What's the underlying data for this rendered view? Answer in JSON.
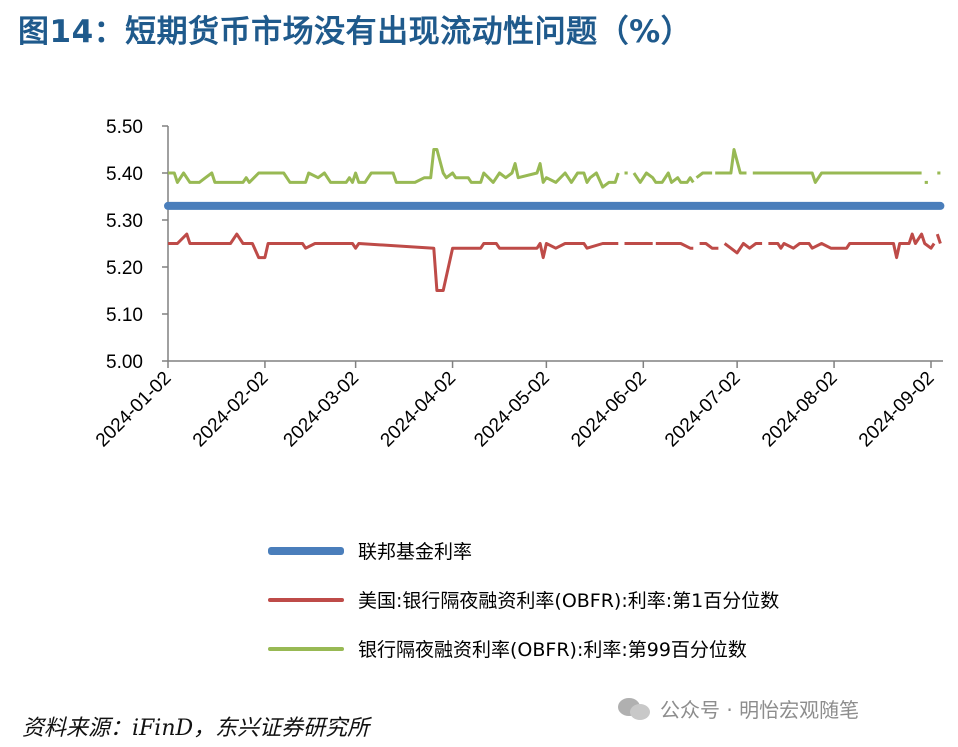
{
  "title": "图14：短期货币市场没有出现流动性问题（%）",
  "source": "资料来源：iFinD，东兴证券研究所",
  "watermark": "公众号 · 明怡宏观随笔",
  "chart_data": {
    "type": "line",
    "title": "图14：短期货币市场没有出现流动性问题（%）",
    "ylim": [
      5.0,
      5.5
    ],
    "y_ticks": [
      "5.00",
      "5.10",
      "5.20",
      "5.30",
      "5.40",
      "5.50"
    ],
    "x_ticks": [
      "2024-01-02",
      "2024-02-02",
      "2024-03-02",
      "2024-04-02",
      "2024-05-02",
      "2024-06-02",
      "2024-07-02",
      "2024-08-02",
      "2024-09-02"
    ],
    "x_start": "2024-01-02",
    "x_end": "2024-09-05",
    "grid": false,
    "legend_position": "bottom",
    "series": [
      {
        "name": "联邦基金利率",
        "color": "#4a7ebb",
        "points": [
          [
            "2024-01-02",
            5.33
          ],
          [
            "2024-09-05",
            5.33
          ]
        ]
      },
      {
        "name": "美国:银行隔夜融资利率(OBFR):利率:第1百分位数",
        "color": "#be4b48",
        "points": [
          [
            "2024-01-02",
            5.25
          ],
          [
            "2024-01-05",
            5.25
          ],
          [
            "2024-01-08",
            5.27
          ],
          [
            "2024-01-09",
            5.25
          ],
          [
            "2024-01-22",
            5.25
          ],
          [
            "2024-01-24",
            5.27
          ],
          [
            "2024-01-26",
            5.25
          ],
          [
            "2024-01-29",
            5.25
          ],
          [
            "2024-01-31",
            5.22
          ],
          [
            "2024-02-02",
            5.22
          ],
          [
            "2024-02-03",
            5.25
          ],
          [
            "2024-02-14",
            5.25
          ],
          [
            "2024-02-15",
            5.24
          ],
          [
            "2024-02-18",
            5.25
          ],
          [
            "2024-03-01",
            5.25
          ],
          [
            "2024-03-02",
            5.24
          ],
          [
            "2024-03-03",
            5.25
          ],
          [
            "2024-03-27",
            5.24
          ],
          [
            "2024-03-28",
            5.15
          ],
          [
            "2024-03-30",
            5.15
          ],
          [
            "2024-04-02",
            5.24
          ],
          [
            "2024-04-11",
            5.24
          ],
          [
            "2024-04-12",
            5.25
          ],
          [
            "2024-04-16",
            5.25
          ],
          [
            "2024-04-17",
            5.24
          ],
          [
            "2024-04-29",
            5.24
          ],
          [
            "2024-04-30",
            5.25
          ],
          [
            "2024-05-01",
            5.22
          ],
          [
            "2024-05-02",
            5.25
          ],
          [
            "2024-05-05",
            5.24
          ],
          [
            "2024-05-08",
            5.25
          ],
          [
            "2024-05-14",
            5.25
          ],
          [
            "2024-05-15",
            5.24
          ],
          [
            "2024-05-20",
            5.25
          ],
          [
            "2024-05-25",
            5.25
          ]
        ],
        "segments_after": [
          [
            [
              "2024-05-27",
              5.25
            ],
            [
              "2024-06-05",
              5.25
            ]
          ],
          [
            [
              "2024-06-06",
              5.25
            ],
            [
              "2024-06-14",
              5.25
            ],
            [
              "2024-06-17",
              5.24
            ],
            [
              "2024-06-18",
              5.24
            ]
          ],
          [
            [
              "2024-06-20",
              5.25
            ],
            [
              "2024-06-22",
              5.25
            ],
            [
              "2024-06-24",
              5.24
            ],
            [
              "2024-06-26",
              5.24
            ]
          ],
          [
            [
              "2024-06-28",
              5.25
            ],
            [
              "2024-06-30",
              5.24
            ],
            [
              "2024-07-02",
              5.23
            ],
            [
              "2024-07-04",
              5.25
            ],
            [
              "2024-07-06",
              5.24
            ],
            [
              "2024-07-08",
              5.25
            ],
            [
              "2024-07-10",
              5.25
            ]
          ],
          [
            [
              "2024-07-12",
              5.25
            ],
            [
              "2024-07-15",
              5.25
            ],
            [
              "2024-07-16",
              5.24
            ],
            [
              "2024-07-17",
              5.25
            ],
            [
              "2024-07-20",
              5.24
            ],
            [
              "2024-07-22",
              5.25
            ],
            [
              "2024-07-25",
              5.25
            ],
            [
              "2024-07-26",
              5.24
            ],
            [
              "2024-07-29",
              5.25
            ],
            [
              "2024-08-01",
              5.24
            ],
            [
              "2024-08-06",
              5.24
            ],
            [
              "2024-08-07",
              5.25
            ],
            [
              "2024-08-21",
              5.25
            ],
            [
              "2024-08-22",
              5.22
            ],
            [
              "2024-08-23",
              5.25
            ],
            [
              "2024-08-26",
              5.25
            ],
            [
              "2024-08-27",
              5.27
            ],
            [
              "2024-08-28",
              5.25
            ],
            [
              "2024-08-30",
              5.27
            ],
            [
              "2024-08-31",
              5.25
            ],
            [
              "2024-09-02",
              5.24
            ],
            [
              "2024-09-03",
              5.25
            ]
          ],
          [
            [
              "2024-09-04",
              5.27
            ],
            [
              "2024-09-05",
              5.25
            ]
          ]
        ]
      },
      {
        "name": "银行隔夜融资利率(OBFR):利率:第99百分位数",
        "color": "#98b954",
        "points": [
          [
            "2024-01-02",
            5.4
          ],
          [
            "2024-01-04",
            5.4
          ],
          [
            "2024-01-05",
            5.38
          ],
          [
            "2024-01-07",
            5.4
          ],
          [
            "2024-01-09",
            5.38
          ],
          [
            "2024-01-12",
            5.38
          ],
          [
            "2024-01-14",
            5.39
          ],
          [
            "2024-01-16",
            5.4
          ],
          [
            "2024-01-17",
            5.38
          ],
          [
            "2024-01-26",
            5.38
          ],
          [
            "2024-01-27",
            5.39
          ],
          [
            "2024-01-28",
            5.38
          ],
          [
            "2024-01-31",
            5.4
          ],
          [
            "2024-02-08",
            5.4
          ],
          [
            "2024-02-10",
            5.38
          ],
          [
            "2024-02-15",
            5.38
          ],
          [
            "2024-02-16",
            5.4
          ],
          [
            "2024-02-19",
            5.39
          ],
          [
            "2024-02-21",
            5.4
          ],
          [
            "2024-02-23",
            5.38
          ],
          [
            "2024-02-28",
            5.38
          ],
          [
            "2024-02-29",
            5.39
          ],
          [
            "2024-03-01",
            5.38
          ],
          [
            "2024-03-02",
            5.4
          ],
          [
            "2024-03-03",
            5.38
          ],
          [
            "2024-03-05",
            5.38
          ],
          [
            "2024-03-06",
            5.39
          ],
          [
            "2024-03-07",
            5.4
          ],
          [
            "2024-03-14",
            5.4
          ],
          [
            "2024-03-15",
            5.38
          ],
          [
            "2024-03-21",
            5.38
          ],
          [
            "2024-03-24",
            5.39
          ],
          [
            "2024-03-26",
            5.39
          ],
          [
            "2024-03-27",
            5.45
          ],
          [
            "2024-03-28",
            5.45
          ],
          [
            "2024-03-30",
            5.4
          ],
          [
            "2024-03-31",
            5.39
          ],
          [
            "2024-04-02",
            5.4
          ],
          [
            "2024-04-03",
            5.39
          ],
          [
            "2024-04-07",
            5.39
          ],
          [
            "2024-04-08",
            5.38
          ],
          [
            "2024-04-11",
            5.38
          ],
          [
            "2024-04-12",
            5.4
          ],
          [
            "2024-04-15",
            5.38
          ],
          [
            "2024-04-17",
            5.4
          ],
          [
            "2024-04-19",
            5.39
          ],
          [
            "2024-04-21",
            5.4
          ],
          [
            "2024-04-22",
            5.42
          ],
          [
            "2024-04-23",
            5.39
          ],
          [
            "2024-04-29",
            5.4
          ],
          [
            "2024-04-30",
            5.42
          ],
          [
            "2024-05-01",
            5.38
          ],
          [
            "2024-05-02",
            5.39
          ],
          [
            "2024-05-05",
            5.38
          ],
          [
            "2024-05-08",
            5.4
          ],
          [
            "2024-05-09",
            5.39
          ],
          [
            "2024-05-10",
            5.38
          ],
          [
            "2024-05-12",
            5.4
          ],
          [
            "2024-05-14",
            5.4
          ],
          [
            "2024-05-15",
            5.38
          ],
          [
            "2024-05-16",
            5.39
          ],
          [
            "2024-05-18",
            5.4
          ],
          [
            "2024-05-20",
            5.37
          ],
          [
            "2024-05-22",
            5.38
          ],
          [
            "2024-05-24",
            5.38
          ],
          [
            "2024-05-25",
            5.4
          ]
        ],
        "segments_after": [
          [
            [
              "2024-05-27",
              5.4
            ],
            [
              "2024-05-28",
              5.4
            ]
          ],
          [
            [
              "2024-05-30",
              5.4
            ],
            [
              "2024-06-01",
              5.38
            ],
            [
              "2024-06-03",
              5.4
            ],
            [
              "2024-06-05",
              5.39
            ],
            [
              "2024-06-06",
              5.38
            ],
            [
              "2024-06-08",
              5.38
            ],
            [
              "2024-06-10",
              5.4
            ],
            [
              "2024-06-11",
              5.38
            ],
            [
              "2024-06-13",
              5.39
            ],
            [
              "2024-06-14",
              5.38
            ],
            [
              "2024-06-16",
              5.38
            ],
            [
              "2024-06-17",
              5.39
            ],
            [
              "2024-06-18",
              5.38
            ]
          ],
          [
            [
              "2024-06-19",
              5.39
            ],
            [
              "2024-06-21",
              5.4
            ],
            [
              "2024-06-24",
              5.4
            ]
          ],
          [
            [
              "2024-06-25",
              5.4
            ],
            [
              "2024-06-30",
              5.4
            ],
            [
              "2024-07-01",
              5.45
            ],
            [
              "2024-07-03",
              5.4
            ],
            [
              "2024-07-05",
              5.4
            ]
          ],
          [
            [
              "2024-07-07",
              5.4
            ],
            [
              "2024-07-26",
              5.4
            ],
            [
              "2024-07-27",
              5.38
            ],
            [
              "2024-07-29",
              5.4
            ],
            [
              "2024-08-27",
              5.4
            ],
            [
              "2024-08-29",
              5.4
            ],
            [
              "2024-08-30",
              5.4
            ]
          ],
          [
            [
              "2024-08-31",
              5.38
            ],
            [
              "2024-09-01",
              5.38
            ]
          ],
          [
            [
              "2024-09-04",
              5.4
            ],
            [
              "2024-09-05",
              5.4
            ]
          ]
        ]
      }
    ]
  }
}
